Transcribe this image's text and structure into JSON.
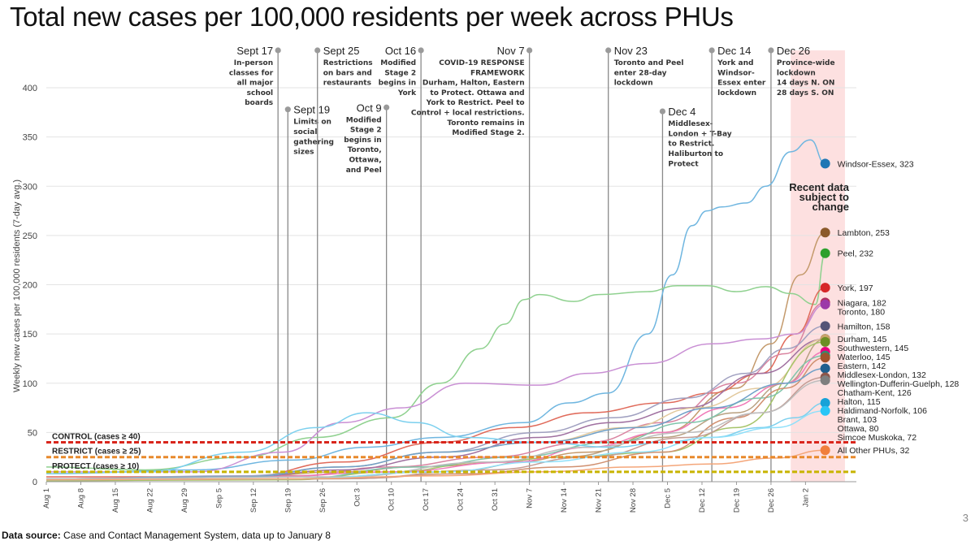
{
  "page": {
    "title": "Total new cases per 100,000 residents per week across PHUs",
    "page_number": "3",
    "source_label": "Data source:",
    "source_text": "Case and Contact Management System, data up to January 8"
  },
  "chart_data": {
    "type": "line",
    "ylabel": "Weekly new cases per 100,000 residents (7-day avg.)",
    "ylim": [
      0,
      400
    ],
    "yticks": [
      0,
      50,
      100,
      150,
      200,
      250,
      300,
      350,
      400
    ],
    "x_start": "2020-08-01",
    "x_end": "2021-01-11",
    "xticks": [
      "Aug 1",
      "Aug 8",
      "Aug 15",
      "Aug 22",
      "Aug 29",
      "Sep 5",
      "Sep 12",
      "Sep 19",
      "Sep 26",
      "Oct 3",
      "Oct 10",
      "Oct 17",
      "Oct 24",
      "Oct 31",
      "Nov 7",
      "Nov 14",
      "Nov 21",
      "Nov 28",
      "Dec 5",
      "Dec 12",
      "Dec 19",
      "Dec 26",
      "Jan 2"
    ],
    "grid": true,
    "shaded_region": {
      "from": "2020-12-30",
      "to": "2021-01-10",
      "color": "#fde0e0",
      "label": "Recent data subject to change"
    },
    "thresholds": [
      {
        "label": "CONTROL (cases ≥ 40)",
        "value": 40,
        "color": "#d9261c"
      },
      {
        "label": "RESTRICT (cases ≥ 25)",
        "value": 25,
        "color": "#e8892b"
      },
      {
        "label": "PROTECT (cases ≥ 10)",
        "value": 10,
        "color": "#c8b400"
      }
    ],
    "annotations": [
      {
        "date": "Sept 17",
        "x": "2020-09-17",
        "top": 408,
        "align": "end",
        "text": [
          "In-person",
          "classes for",
          "all major",
          "school",
          "boards"
        ]
      },
      {
        "date": "Sept 19",
        "x": "2020-09-19",
        "top": 378,
        "align": "start",
        "text": [
          "Limits on",
          "social",
          "gathering",
          "sizes"
        ]
      },
      {
        "date": "Sept 25",
        "x": "2020-09-25",
        "top": 408,
        "align": "start",
        "text": [
          "Restrictions",
          "on bars and",
          "restaurants"
        ]
      },
      {
        "date": "Oct 9",
        "x": "2020-10-09",
        "top": 380,
        "align": "end",
        "text": [
          "Modified",
          "Stage 2",
          "begins in",
          "Toronto,",
          "Ottawa,",
          "and Peel"
        ]
      },
      {
        "date": "Oct 16",
        "x": "2020-10-16",
        "top": 408,
        "align": "end",
        "text": [
          "Modified",
          "Stage 2",
          "begins in",
          "York"
        ]
      },
      {
        "date": "Nov 7",
        "x": "2020-11-07",
        "top": 408,
        "align": "end",
        "text": [
          "COVID-19 RESPONSE",
          "FRAMEWORK",
          "Durham, Halton, Eastern",
          "to Protect. Ottawa and",
          "York to Restrict. Peel to",
          "Control + local restrictions.",
          "Toronto remains in",
          "Modified Stage 2."
        ]
      },
      {
        "date": "Nov 23",
        "x": "2020-11-23",
        "top": 408,
        "align": "start",
        "text": [
          "Toronto and Peel",
          "enter 28-day",
          "lockdown"
        ]
      },
      {
        "date": "Dec 4",
        "x": "2020-12-04",
        "top": 376,
        "align": "start",
        "text": [
          "Middlesex-",
          "London + T-Bay",
          "to Restrict.",
          "Haliburton to",
          "Protect"
        ]
      },
      {
        "date": "Dec 14",
        "x": "2020-12-14",
        "top": 408,
        "align": "start",
        "text": [
          "York and",
          "Windsor-",
          "Essex enter",
          "lockdown"
        ]
      },
      {
        "date": "Dec 26",
        "x": "2020-12-26",
        "top": 408,
        "align": "start",
        "text": [
          "Province-wide",
          "lockdown",
          "14 days N. ON",
          "28 days S. ON"
        ]
      }
    ],
    "series": [
      {
        "name": "Windsor-Essex",
        "last": 323,
        "color": "#1f77b4",
        "line": "#6fb6e0",
        "pts": [
          [
            0,
            8
          ],
          [
            30,
            12
          ],
          [
            50,
            22
          ],
          [
            65,
            35
          ],
          [
            80,
            45
          ],
          [
            97,
            60
          ],
          [
            106,
            80
          ],
          [
            114,
            90
          ],
          [
            122,
            150
          ],
          [
            127,
            210
          ],
          [
            131,
            260
          ],
          [
            134,
            275
          ],
          [
            137,
            279
          ],
          [
            142,
            283
          ],
          [
            146,
            300
          ],
          [
            151,
            335
          ],
          [
            155,
            347
          ],
          [
            158,
            323
          ]
        ]
      },
      {
        "name": "Lambton",
        "last": 253,
        "color": "#8b5a2b",
        "line": "#c49a6c",
        "pts": [
          [
            0,
            3
          ],
          [
            40,
            5
          ],
          [
            60,
            10
          ],
          [
            75,
            15
          ],
          [
            95,
            20
          ],
          [
            110,
            30
          ],
          [
            125,
            50
          ],
          [
            140,
            95
          ],
          [
            147,
            140
          ],
          [
            153,
            210
          ],
          [
            158,
            253
          ]
        ]
      },
      {
        "name": "Peel",
        "last": 232,
        "color": "#2ca02c",
        "line": "#8fd18f",
        "pts": [
          [
            0,
            15
          ],
          [
            20,
            12
          ],
          [
            40,
            25
          ],
          [
            55,
            45
          ],
          [
            70,
            65
          ],
          [
            80,
            100
          ],
          [
            88,
            135
          ],
          [
            93,
            160
          ],
          [
            97,
            185
          ],
          [
            100,
            190
          ],
          [
            107,
            183
          ],
          [
            112,
            190
          ],
          [
            122,
            193
          ],
          [
            128,
            199
          ],
          [
            134,
            199
          ],
          [
            140,
            193
          ],
          [
            146,
            198
          ],
          [
            151,
            191
          ],
          [
            156,
            180
          ],
          [
            158,
            232
          ]
        ]
      },
      {
        "name": "York",
        "last": 197,
        "color": "#d62728",
        "line": "#e06a5a",
        "pts": [
          [
            0,
            5
          ],
          [
            40,
            5
          ],
          [
            60,
            20
          ],
          [
            80,
            40
          ],
          [
            95,
            55
          ],
          [
            110,
            70
          ],
          [
            125,
            80
          ],
          [
            135,
            90
          ],
          [
            145,
            110
          ],
          [
            152,
            150
          ],
          [
            158,
            197
          ]
        ]
      },
      {
        "name": "Niagara",
        "last": 182,
        "color": "#b03060",
        "line": "#d983a0",
        "pts": [
          [
            0,
            3
          ],
          [
            50,
            6
          ],
          [
            70,
            15
          ],
          [
            90,
            25
          ],
          [
            110,
            40
          ],
          [
            125,
            60
          ],
          [
            140,
            100
          ],
          [
            150,
            130
          ],
          [
            158,
            182
          ]
        ]
      },
      {
        "name": "Toronto",
        "last": 180,
        "color": "#9c3aa8",
        "line": "#c98fd4",
        "pts": [
          [
            0,
            10
          ],
          [
            30,
            10
          ],
          [
            48,
            30
          ],
          [
            60,
            60
          ],
          [
            72,
            75
          ],
          [
            85,
            100
          ],
          [
            100,
            98
          ],
          [
            110,
            110
          ],
          [
            122,
            120
          ],
          [
            135,
            140
          ],
          [
            145,
            145
          ],
          [
            152,
            150
          ],
          [
            158,
            180
          ]
        ]
      },
      {
        "name": "Hamilton",
        "last": 158,
        "color": "#555577",
        "line": "#a0a0c0",
        "pts": [
          [
            0,
            3
          ],
          [
            40,
            6
          ],
          [
            60,
            15
          ],
          [
            80,
            30
          ],
          [
            100,
            50
          ],
          [
            115,
            65
          ],
          [
            130,
            85
          ],
          [
            142,
            110
          ],
          [
            150,
            135
          ],
          [
            158,
            158
          ]
        ]
      },
      {
        "name": "Durham",
        "last": 145,
        "color": "#552255",
        "line": "#a070a0",
        "pts": [
          [
            0,
            2
          ],
          [
            40,
            5
          ],
          [
            60,
            12
          ],
          [
            80,
            25
          ],
          [
            100,
            45
          ],
          [
            115,
            60
          ],
          [
            130,
            75
          ],
          [
            145,
            110
          ],
          [
            158,
            145
          ]
        ]
      },
      {
        "name": "Southwestern",
        "last": 145,
        "color": "#7a5a3a",
        "line": "#b8a080",
        "pts": [
          [
            0,
            1
          ],
          [
            50,
            3
          ],
          [
            80,
            10
          ],
          [
            105,
            25
          ],
          [
            125,
            45
          ],
          [
            140,
            70
          ],
          [
            150,
            100
          ],
          [
            158,
            145
          ]
        ]
      },
      {
        "name": "Waterloo",
        "last": 145,
        "color": "#c9a36b",
        "line": "#e2c99d",
        "pts": [
          [
            0,
            3
          ],
          [
            40,
            5
          ],
          [
            60,
            15
          ],
          [
            80,
            30
          ],
          [
            100,
            40
          ],
          [
            118,
            55
          ],
          [
            132,
            75
          ],
          [
            145,
            95
          ],
          [
            158,
            145
          ]
        ]
      },
      {
        "name": "Eastern",
        "last": 142,
        "color": "#6b8e23",
        "line": "#a6c46a",
        "pts": [
          [
            0,
            1
          ],
          [
            50,
            2
          ],
          [
            70,
            10
          ],
          [
            90,
            20
          ],
          [
            105,
            25
          ],
          [
            125,
            30
          ],
          [
            140,
            55
          ],
          [
            158,
            142
          ]
        ]
      },
      {
        "name": "Middlesex-London",
        "last": 132,
        "color": "#e6007e",
        "line": "#f07ab8",
        "pts": [
          [
            0,
            3
          ],
          [
            45,
            5
          ],
          [
            70,
            10
          ],
          [
            95,
            20
          ],
          [
            110,
            35
          ],
          [
            125,
            50
          ],
          [
            138,
            75
          ],
          [
            150,
            100
          ],
          [
            158,
            132
          ]
        ]
      },
      {
        "name": "Wellington-Dufferin-Guelph",
        "last": 128,
        "color": "#2f8f6f",
        "line": "#7fc4aa",
        "pts": [
          [
            0,
            2
          ],
          [
            50,
            3
          ],
          [
            75,
            15
          ],
          [
            95,
            25
          ],
          [
            115,
            40
          ],
          [
            130,
            60
          ],
          [
            145,
            85
          ],
          [
            158,
            128
          ]
        ]
      },
      {
        "name": "Chatham-Kent",
        "last": 126,
        "color": "#a0522d",
        "line": "#d09070",
        "pts": [
          [
            0,
            2
          ],
          [
            60,
            3
          ],
          [
            85,
            8
          ],
          [
            105,
            15
          ],
          [
            125,
            30
          ],
          [
            140,
            65
          ],
          [
            150,
            95
          ],
          [
            158,
            126
          ]
        ]
      },
      {
        "name": "Halton",
        "last": 115,
        "color": "#1f5f8f",
        "line": "#6fa0c8",
        "pts": [
          [
            0,
            3
          ],
          [
            40,
            5
          ],
          [
            60,
            15
          ],
          [
            80,
            30
          ],
          [
            100,
            40
          ],
          [
            120,
            55
          ],
          [
            135,
            75
          ],
          [
            150,
            100
          ],
          [
            158,
            115
          ]
        ]
      },
      {
        "name": "Haldimand-Norfolk",
        "last": 106,
        "color": "#8c564b",
        "line": "#c49c94",
        "pts": [
          [
            0,
            2
          ],
          [
            60,
            3
          ],
          [
            90,
            12
          ],
          [
            110,
            25
          ],
          [
            130,
            45
          ],
          [
            145,
            70
          ],
          [
            158,
            106
          ]
        ]
      },
      {
        "name": "Brant",
        "last": 103,
        "color": "#7f7f7f",
        "line": "#bdbdbd",
        "pts": [
          [
            0,
            3
          ],
          [
            60,
            5
          ],
          [
            90,
            20
          ],
          [
            110,
            35
          ],
          [
            130,
            50
          ],
          [
            145,
            70
          ],
          [
            158,
            103
          ]
        ]
      },
      {
        "name": "Ottawa",
        "last": 80,
        "color": "#17a2d8",
        "line": "#7cd0ee",
        "pts": [
          [
            0,
            8
          ],
          [
            20,
            10
          ],
          [
            40,
            30
          ],
          [
            55,
            55
          ],
          [
            65,
            70
          ],
          [
            75,
            60
          ],
          [
            85,
            45
          ],
          [
            100,
            40
          ],
          [
            115,
            35
          ],
          [
            125,
            40
          ],
          [
            135,
            45
          ],
          [
            145,
            55
          ],
          [
            152,
            65
          ],
          [
            158,
            80
          ]
        ]
      },
      {
        "name": "Simcoe Muskoka",
        "last": 72,
        "color": "#29c5f6",
        "line": "#8fe0fa",
        "pts": [
          [
            0,
            2
          ],
          [
            50,
            3
          ],
          [
            80,
            10
          ],
          [
            100,
            20
          ],
          [
            120,
            30
          ],
          [
            135,
            45
          ],
          [
            148,
            55
          ],
          [
            158,
            72
          ]
        ]
      },
      {
        "name": "All Other PHUs",
        "last": 32,
        "color": "#f07f3c",
        "line": "#f4a67a",
        "pts": [
          [
            0,
            2
          ],
          [
            50,
            3
          ],
          [
            80,
            6
          ],
          [
            100,
            10
          ],
          [
            120,
            15
          ],
          [
            135,
            18
          ],
          [
            148,
            24
          ],
          [
            158,
            32
          ]
        ]
      }
    ]
  }
}
